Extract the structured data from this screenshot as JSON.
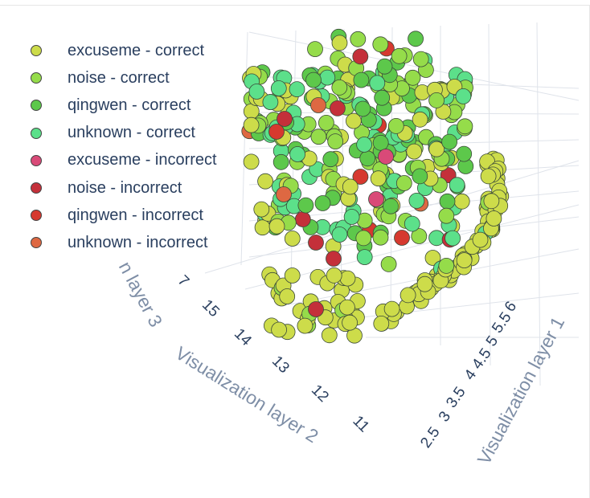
{
  "chart_data": {
    "type": "scatter",
    "title": "",
    "axes": {
      "x": {
        "title": "Visualization layer 1",
        "ticks": [
          "2.5",
          "3",
          "3.5",
          "4",
          "4.5",
          "5",
          "5.5",
          "6"
        ],
        "range": [
          2.3,
          6.3
        ]
      },
      "y": {
        "title": "Visualization layer 2",
        "ticks": [
          "11",
          "12",
          "13",
          "14",
          "15"
        ],
        "range": [
          10.5,
          15.5
        ]
      },
      "z": {
        "title": "Visualization layer 3",
        "title_visible": "n layer 3",
        "ticks": [
          "7"
        ],
        "range": [
          2,
          9
        ]
      }
    },
    "grid": true,
    "legend_position": "top-left",
    "series": [
      {
        "name": "excuseme - correct",
        "color": "#cddc4a"
      },
      {
        "name": "noise - correct",
        "color": "#95dc4a"
      },
      {
        "name": "qingwen - correct",
        "color": "#5dc84b"
      },
      {
        "name": "unknown - correct",
        "color": "#5ce08a"
      },
      {
        "name": "excuseme - incorrect",
        "color": "#d94a78"
      },
      {
        "name": "noise - incorrect",
        "color": "#c4303a"
      },
      {
        "name": "qingwen - incorrect",
        "color": "#d6392f"
      },
      {
        "name": "unknown - incorrect",
        "color": "#de6842"
      }
    ]
  }
}
